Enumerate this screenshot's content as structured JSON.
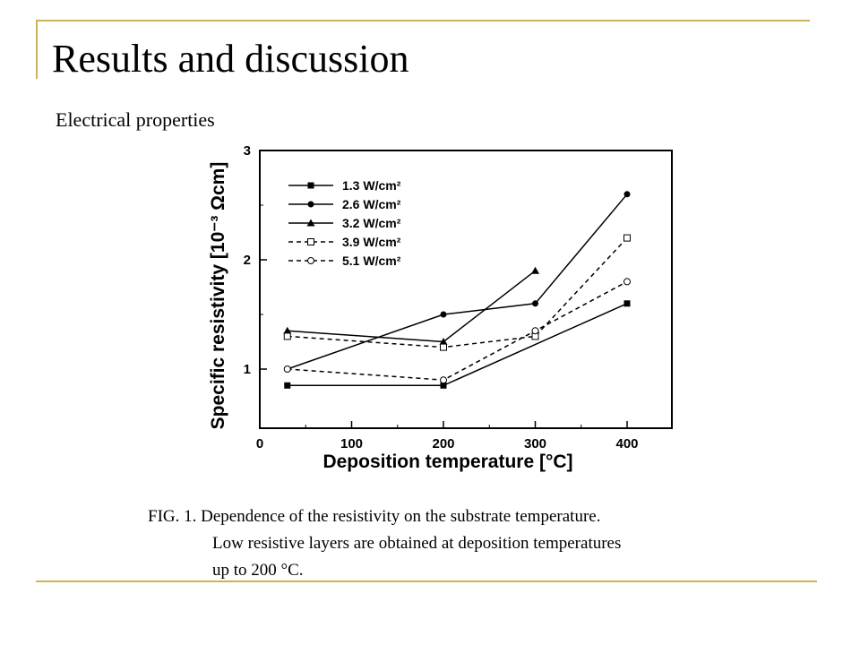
{
  "slide": {
    "title": "Results and discussion",
    "subtitle": "Electrical properties",
    "accent_color": "#c9b458"
  },
  "caption": {
    "line1": "FIG. 1. Dependence of the resistivity on the substrate temperature.",
    "line2": "Low resistive layers are obtained at deposition temperatures",
    "line3": "up to 200 °C."
  },
  "chart_data": {
    "type": "line",
    "xlabel": "Deposition temperature [°C]",
    "ylabel": "Specific resistivity [10⁻³ Ωcm]",
    "xlim": [
      0,
      450
    ],
    "ylim": [
      0.4,
      3
    ],
    "xticks": [
      0,
      100,
      200,
      300,
      400
    ],
    "yticks": [
      1,
      2,
      3
    ],
    "grid": false,
    "legend_position": "top-left",
    "series": [
      {
        "name": "1.3 W/cm²",
        "marker": "filled-square",
        "dash": "solid",
        "points": [
          [
            30,
            0.85
          ],
          [
            200,
            0.85
          ],
          [
            400,
            1.6
          ]
        ]
      },
      {
        "name": "2.6 W/cm²",
        "marker": "filled-circle",
        "dash": "solid",
        "points": [
          [
            30,
            1.0
          ],
          [
            200,
            1.5
          ],
          [
            300,
            1.6
          ],
          [
            400,
            2.6
          ]
        ]
      },
      {
        "name": "3.2 W/cm²",
        "marker": "filled-triangle",
        "dash": "solid",
        "points": [
          [
            30,
            1.35
          ],
          [
            200,
            1.25
          ],
          [
            300,
            1.9
          ]
        ]
      },
      {
        "name": "3.9 W/cm²",
        "marker": "open-square",
        "dash": "dashed",
        "points": [
          [
            30,
            1.3
          ],
          [
            200,
            1.2
          ],
          [
            300,
            1.3
          ],
          [
            400,
            2.2
          ]
        ]
      },
      {
        "name": "5.1 W/cm²",
        "marker": "open-circle",
        "dash": "dashed",
        "points": [
          [
            30,
            1.0
          ],
          [
            200,
            0.9
          ],
          [
            300,
            1.35
          ],
          [
            400,
            1.8
          ]
        ]
      }
    ]
  }
}
